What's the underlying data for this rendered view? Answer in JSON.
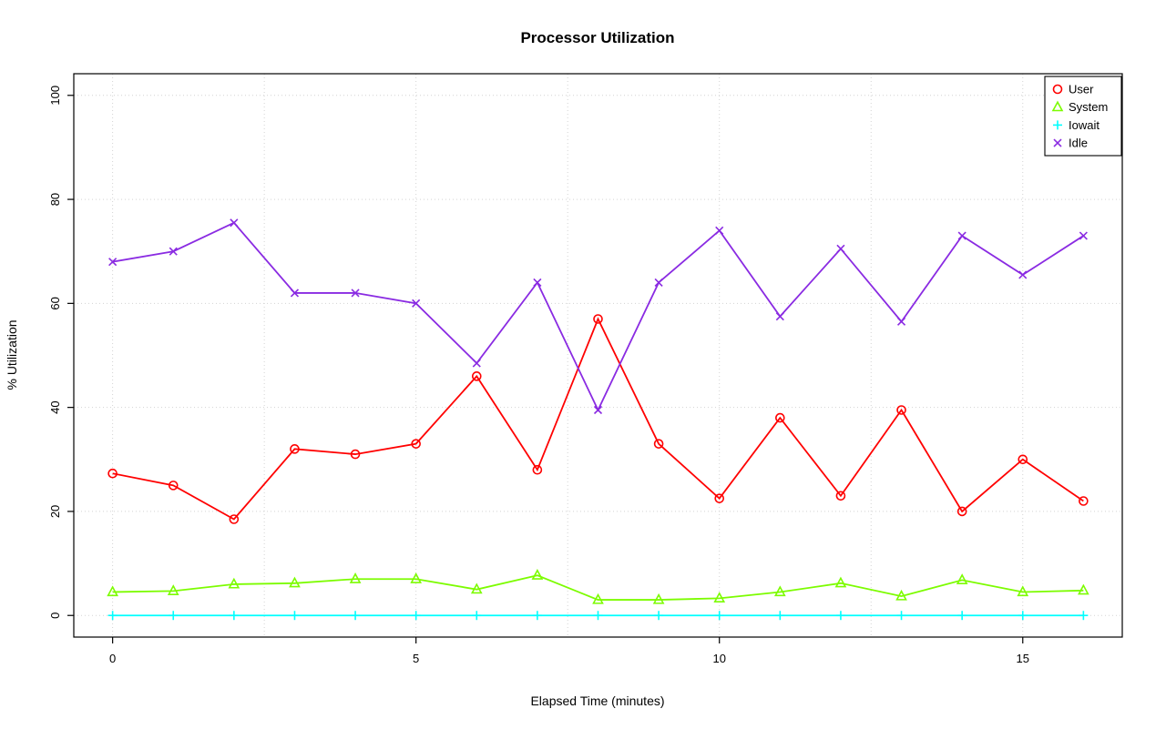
{
  "chart_data": {
    "type": "line",
    "title": "Processor Utilization",
    "xlabel": "Elapsed Time (minutes)",
    "ylabel": "% Utilization",
    "x": [
      0,
      1,
      2,
      3,
      4,
      5,
      6,
      7,
      8,
      9,
      10,
      11,
      12,
      13,
      14,
      15,
      16
    ],
    "series": [
      {
        "name": "User",
        "color": "#FF0000",
        "marker": "circle",
        "values": [
          27.3,
          25,
          18.5,
          32,
          31,
          33,
          46,
          28,
          57,
          33,
          22.5,
          38,
          23,
          39.5,
          20,
          30,
          22
        ]
      },
      {
        "name": "System",
        "color": "#7CFC00",
        "marker": "triangle",
        "values": [
          4.5,
          4.7,
          6,
          6.2,
          7,
          7,
          5,
          7.7,
          3,
          3,
          3.3,
          4.5,
          6.2,
          3.7,
          6.8,
          4.5,
          4.8
        ]
      },
      {
        "name": "Iowait",
        "color": "#00FFFF",
        "marker": "plus",
        "values": [
          0,
          0,
          0,
          0,
          0,
          0,
          0,
          0,
          0,
          0,
          0,
          0,
          0,
          0,
          0,
          0,
          0
        ]
      },
      {
        "name": "Idle",
        "color": "#8A2BE2",
        "marker": "x",
        "values": [
          68,
          70,
          75.5,
          62,
          62,
          60,
          48.5,
          64,
          39.5,
          64,
          74,
          57.5,
          70.5,
          56.5,
          73,
          65.5,
          73
        ]
      }
    ],
    "xticks": [
      0,
      5,
      10,
      15
    ],
    "yticks": [
      0,
      20,
      40,
      60,
      80,
      100
    ],
    "grid_x": [
      0,
      2.5,
      5,
      7.5,
      10,
      12.5,
      15
    ],
    "grid_y": [
      0,
      20,
      40,
      60,
      80,
      100
    ],
    "xlim": [
      -0.64,
      16.64
    ],
    "ylim": [
      -4.16,
      104.16
    ],
    "grid": true,
    "legend_position": "top-right"
  }
}
